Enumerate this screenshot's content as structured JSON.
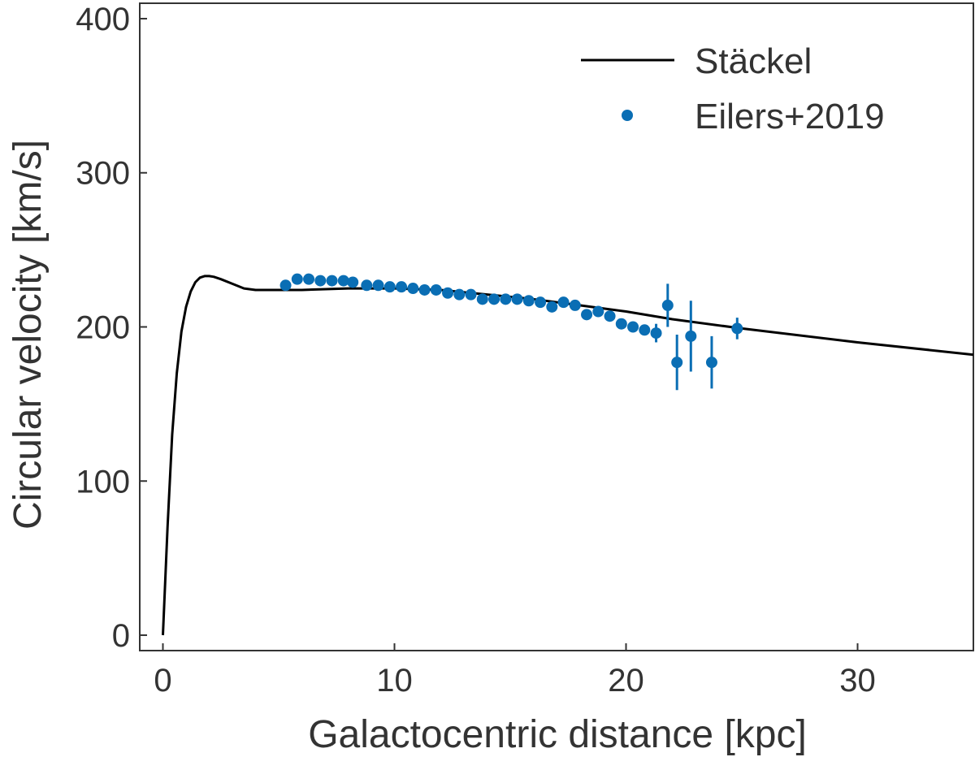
{
  "chart_data": {
    "type": "line",
    "title": "",
    "xlabel": "Galactocentric distance [kpc]",
    "ylabel": "Circular velocity [km/s]",
    "xlim": [
      -1,
      35
    ],
    "ylim": [
      -10,
      410
    ],
    "xticks": [
      0,
      10,
      20,
      30
    ],
    "yticks": [
      0,
      100,
      200,
      300,
      400
    ],
    "xtick_labels": [
      "0",
      "10",
      "20",
      "30"
    ],
    "ytick_labels": [
      "0",
      "100",
      "200",
      "300",
      "400"
    ],
    "grid": false,
    "legend_position": "top-right",
    "series": [
      {
        "name": "Stäckel",
        "kind": "line",
        "color": "#000000",
        "x": [
          0,
          0.2,
          0.4,
          0.6,
          0.8,
          1.0,
          1.2,
          1.4,
          1.6,
          1.8,
          2.0,
          2.2,
          2.5,
          3.0,
          3.5,
          4.0,
          5.0,
          6.0,
          8.0,
          10.0,
          12.0,
          14.0,
          16.0,
          18.0,
          20.0,
          22.0,
          25.0,
          30.0,
          35.0
        ],
        "y": [
          0,
          70,
          130,
          170,
          197,
          213,
          223,
          229,
          232,
          233,
          233,
          232.5,
          231,
          228,
          225,
          224,
          224,
          224,
          225,
          225,
          224,
          221,
          218,
          214,
          210,
          205,
          199,
          190,
          182
        ]
      },
      {
        "name": "Eilers+2019",
        "kind": "scatter",
        "color": "#0a6eb4",
        "x": [
          5.3,
          5.8,
          6.3,
          6.8,
          7.3,
          7.8,
          8.2,
          8.8,
          9.3,
          9.8,
          10.3,
          10.8,
          11.3,
          11.8,
          12.3,
          12.8,
          13.3,
          13.8,
          14.3,
          14.8,
          15.3,
          15.8,
          16.3,
          16.8,
          17.3,
          17.8,
          18.3,
          18.8,
          19.3,
          19.8,
          20.3,
          20.8,
          21.3,
          21.8,
          22.2,
          22.8,
          23.7,
          24.8
        ],
        "y": [
          227,
          231,
          231,
          230,
          230,
          230,
          229,
          227,
          227,
          226,
          226,
          225,
          224,
          224,
          222,
          221,
          221,
          218,
          218,
          218,
          218,
          217,
          216,
          213,
          216,
          214,
          208,
          210,
          207,
          202,
          200,
          198,
          196,
          214,
          177,
          194,
          177,
          199
        ],
        "yerr": [
          2,
          2,
          2,
          2,
          2,
          2,
          2,
          2,
          2,
          2,
          2,
          2,
          2,
          2,
          2,
          2,
          2,
          2,
          2,
          2,
          2,
          2,
          2,
          2,
          2,
          2,
          2,
          2,
          2,
          2,
          3,
          3,
          6,
          14,
          18,
          23,
          17,
          7
        ]
      }
    ]
  }
}
